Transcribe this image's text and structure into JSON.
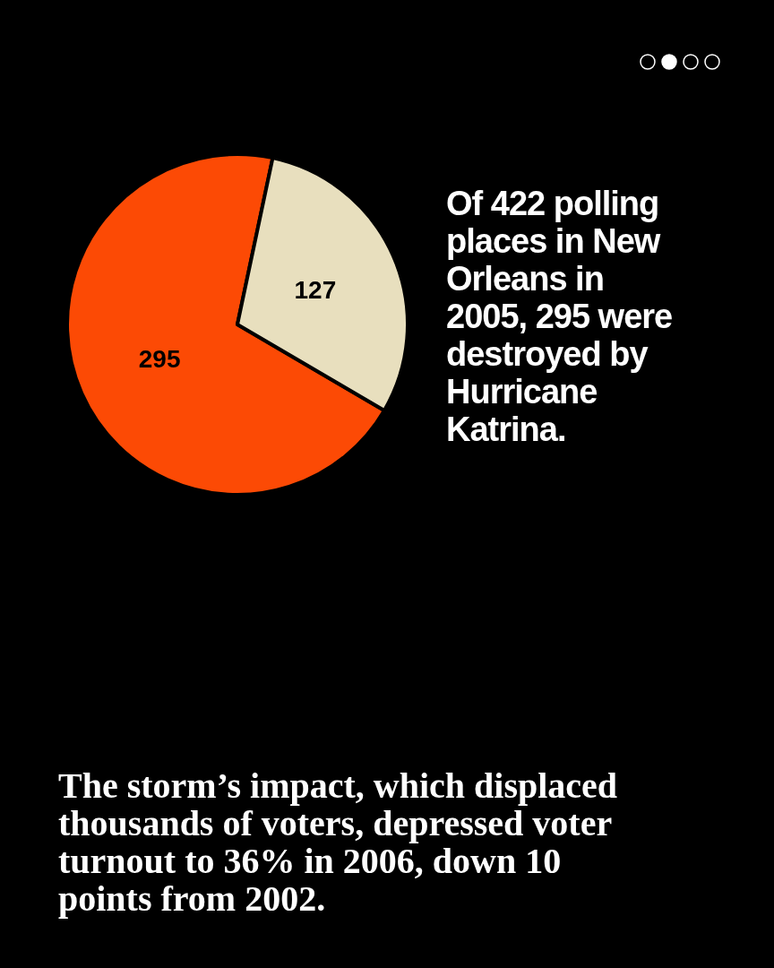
{
  "chart_data": {
    "type": "pie",
    "title": "Of 422 polling places in New Orleans in 2005, 295 were destroyed by Hurricane Katrina.",
    "categories": [
      null,
      null
    ],
    "values": [
      295,
      127
    ],
    "colors": [
      "#fc4a05",
      "#e8dfbe"
    ],
    "data_labels": true,
    "annotations": [
      "The storm’s impact, which displaced thousands of voters, depressed voter turnout to 36% in 2006, down 10 points from 2002."
    ]
  }
}
